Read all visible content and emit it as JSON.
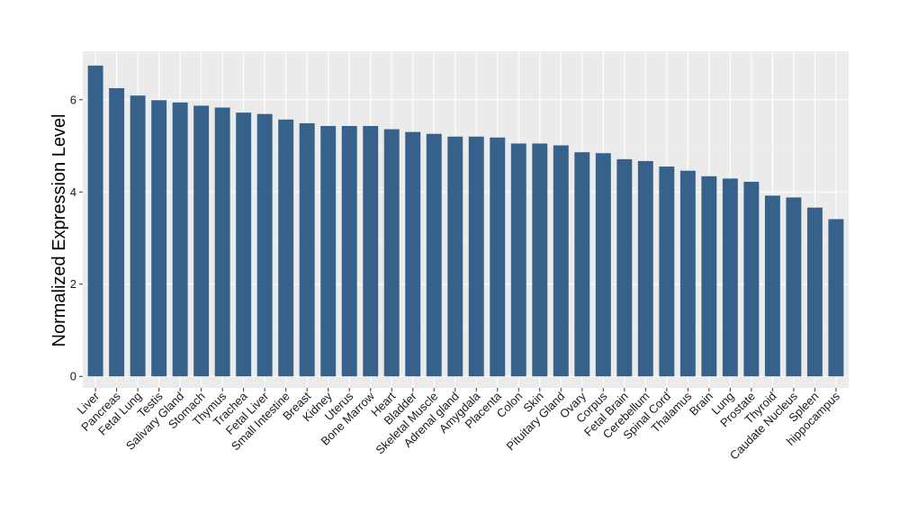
{
  "chart_data": {
    "type": "bar",
    "title": "",
    "xlabel": "",
    "ylabel": "Normalized Expression Level",
    "ylim": [
      -0.25,
      7.05
    ],
    "yticks": [
      0,
      2,
      4,
      6
    ],
    "grid": true,
    "colors": {
      "bar": "#35618A",
      "panel": "#EBEBEB",
      "grid_major": "#FFFFFF",
      "grid_minor": "#F5F5F5"
    },
    "categories": [
      "Liver",
      "Pancreas",
      "Fetal Lung",
      "Testis",
      "Salivary Gland",
      "Stomach",
      "Thymus",
      "Trachea",
      "Fetal Liver",
      "Small Intestine",
      "Breast",
      "Kidney",
      "Uterus",
      "Bone Marrow",
      "Heart",
      "Bladder",
      "Skeletal Muscle",
      "Adrenal gland",
      "Amygdala",
      "Placenta",
      "Colon",
      "Skin",
      "Pituitary Gland",
      "Ovary",
      "Corpus",
      "Fetal Brain",
      "Cerebellum",
      "Spinal Cord",
      "Thalamus",
      "Brain",
      "Lung",
      "Prostate",
      "Thyroid",
      "Caudate Nucleus",
      "Spleen",
      "hippocampus"
    ],
    "values": [
      6.74,
      6.25,
      6.09,
      5.99,
      5.94,
      5.87,
      5.83,
      5.72,
      5.69,
      5.57,
      5.49,
      5.43,
      5.43,
      5.43,
      5.36,
      5.3,
      5.26,
      5.2,
      5.2,
      5.18,
      5.05,
      5.05,
      5.01,
      4.86,
      4.84,
      4.71,
      4.67,
      4.55,
      4.46,
      4.34,
      4.29,
      4.22,
      3.92,
      3.88,
      3.66,
      3.41
    ]
  }
}
